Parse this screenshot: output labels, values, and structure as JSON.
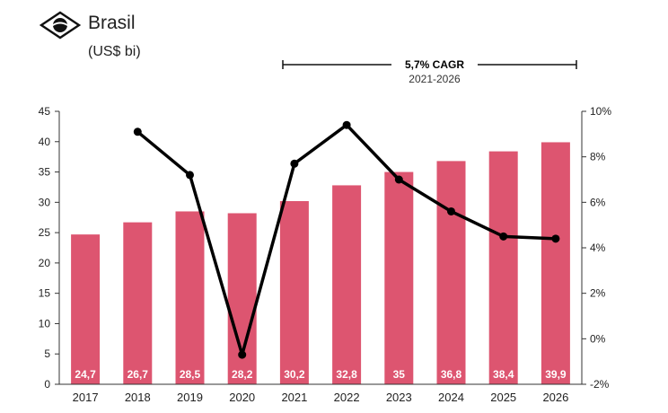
{
  "header": {
    "title": "Brasil",
    "unit": "(US$ bi)"
  },
  "cagr": {
    "label": "5,7% CAGR",
    "period": "2021-2026"
  },
  "colors": {
    "bar": "#dd5570",
    "line": "#000000",
    "axis": "#333333"
  },
  "chart_data": {
    "type": "bar",
    "categories": [
      "2017",
      "2018",
      "2019",
      "2020",
      "2021",
      "2022",
      "2023",
      "2024",
      "2025",
      "2026"
    ],
    "bar_labels": [
      "24,7",
      "26,7",
      "28,5",
      "28,2",
      "30,2",
      "32,8",
      "35",
      "36,8",
      "38,4",
      "39,9"
    ],
    "series": [
      {
        "type": "bar",
        "axis": "left",
        "values": [
          24.7,
          26.7,
          28.5,
          28.2,
          30.2,
          32.8,
          35.0,
          36.8,
          38.4,
          39.9
        ]
      },
      {
        "type": "line",
        "axis": "right",
        "values": [
          null,
          9.1,
          7.2,
          -0.7,
          7.7,
          9.4,
          7.0,
          5.6,
          4.5,
          4.4
        ]
      }
    ],
    "y_left": {
      "min": 0,
      "max": 45,
      "ticks": [
        "0",
        "5",
        "10",
        "15",
        "20",
        "25",
        "30",
        "35",
        "40",
        "45"
      ],
      "tick_values": [
        0,
        5,
        10,
        15,
        20,
        25,
        30,
        35,
        40,
        45
      ]
    },
    "y_right": {
      "min": -2,
      "max": 10,
      "ticks": [
        "-2%",
        "0%",
        "2%",
        "4%",
        "6%",
        "8%",
        "10%"
      ],
      "tick_values": [
        -2,
        0,
        2,
        4,
        6,
        8,
        10
      ]
    },
    "grid": false,
    "legend": "none"
  }
}
